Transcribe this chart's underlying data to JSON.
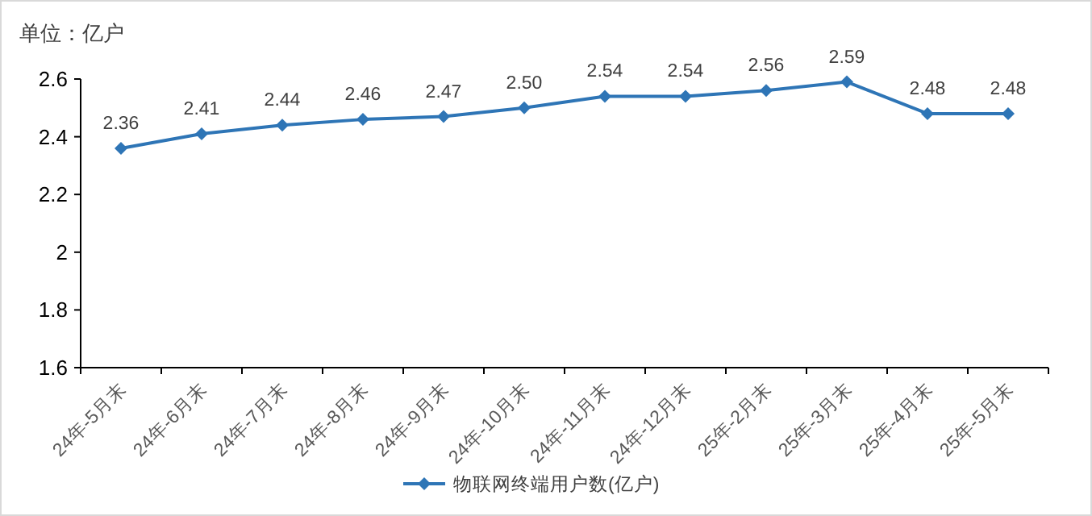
{
  "chart_data": {
    "type": "line",
    "ylabel": "单位：亿户",
    "categories": [
      "24年-5月末",
      "24年-6月末",
      "24年-7月末",
      "24年-8月末",
      "24年-9月末",
      "24年-10月末",
      "24年-11月末",
      "24年-12月末",
      "25年-2月末",
      "25年-3月末",
      "25年-4月末",
      "25年-5月末"
    ],
    "series": [
      {
        "name": "物联网终端用户数(亿户)",
        "color": "#2e75b6",
        "values": [
          2.36,
          2.41,
          2.44,
          2.46,
          2.47,
          2.5,
          2.54,
          2.54,
          2.56,
          2.59,
          2.48,
          2.48
        ]
      }
    ],
    "value_labels": [
      "2.36",
      "2.41",
      "2.44",
      "2.46",
      "2.47",
      "2.50",
      "2.54",
      "2.54",
      "2.56",
      "2.59",
      "2.48",
      "2.48"
    ],
    "ylim": [
      1.6,
      2.6
    ],
    "yticks": [
      1.6,
      1.8,
      2,
      2.2,
      2.4,
      2.6
    ],
    "grid": false,
    "legend": "bottom",
    "marker": "diamond",
    "line_style": "solid"
  }
}
